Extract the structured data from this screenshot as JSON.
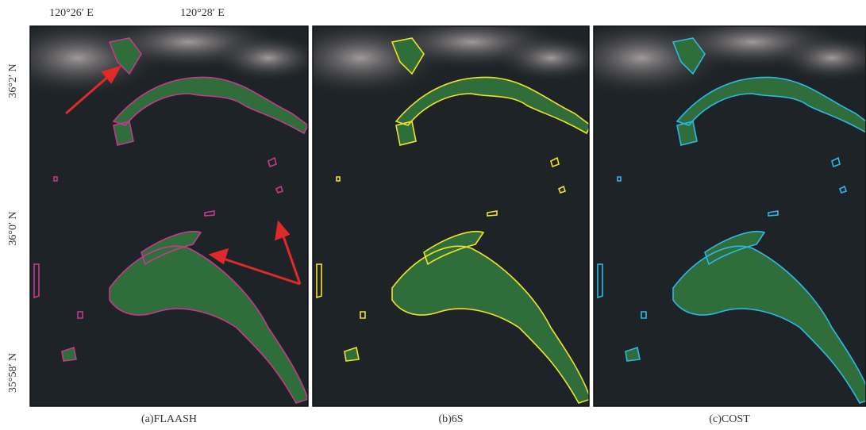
{
  "axes": {
    "top_labels": [
      "120°26′ E",
      "120°28′ E"
    ],
    "left_labels": [
      "36°2′ N",
      "36°0′ N",
      "35°58′ N"
    ]
  },
  "panels": [
    {
      "caption": "(a)FLAASH"
    },
    {
      "caption": "(b)6S"
    },
    {
      "caption": "(c)COST"
    }
  ]
}
